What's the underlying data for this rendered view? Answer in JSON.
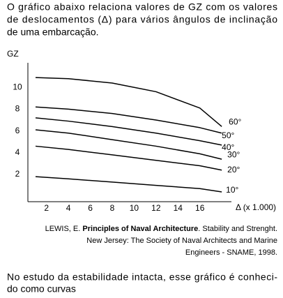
{
  "intro": [
    "O gráfico abaixo relaciona valores de GZ com os valores",
    "de deslocamentos (Δ) para vários ângulos de inclinação",
    "de uma embarcação."
  ],
  "chart_data": {
    "type": "line",
    "y_label": "GZ",
    "x_label": "Δ (x 1.000)",
    "x": [
      1,
      4,
      8,
      12,
      16,
      18
    ],
    "series": [
      {
        "name": "10°",
        "color": "#000000",
        "values": [
          1.8,
          1.6,
          1.3,
          1.0,
          0.7,
          0.4
        ]
      },
      {
        "name": "20°",
        "color": "#000000",
        "values": [
          4.6,
          4.3,
          3.8,
          3.3,
          2.8,
          2.4
        ]
      },
      {
        "name": "30°",
        "color": "#000000",
        "values": [
          6.1,
          5.8,
          5.2,
          4.6,
          3.9,
          3.4
        ]
      },
      {
        "name": "40°",
        "color": "#000000",
        "values": [
          7.2,
          6.9,
          6.4,
          5.8,
          5.1,
          4.7
        ]
      },
      {
        "name": "50°",
        "color": "#000000",
        "values": [
          8.2,
          8.0,
          7.6,
          7.0,
          6.3,
          5.8
        ]
      },
      {
        "name": "60°",
        "color": "#000000",
        "values": [
          10.9,
          10.8,
          10.4,
          9.6,
          8.1,
          6.4
        ]
      }
    ],
    "xlim": [
      0.3,
      19.2
    ],
    "ylim": [
      -0.5,
      12
    ],
    "xticks": [
      2,
      4,
      6,
      8,
      10,
      12,
      14,
      16
    ],
    "yticks": [
      2,
      4,
      6,
      8,
      10
    ],
    "grid": false
  },
  "caption": {
    "author": "LEWIS, E.",
    "book_title": "Principles of Naval Architecture",
    "rest": ". Stability and Strenght.",
    "line2": "New Jersey: The Society of Naval Architects and Marine",
    "line3": "Engineers - SNAME, 1998."
  },
  "question": [
    "No estudo da estabilidade intacta, esse gráfico é conheci-",
    "do como curvas"
  ]
}
